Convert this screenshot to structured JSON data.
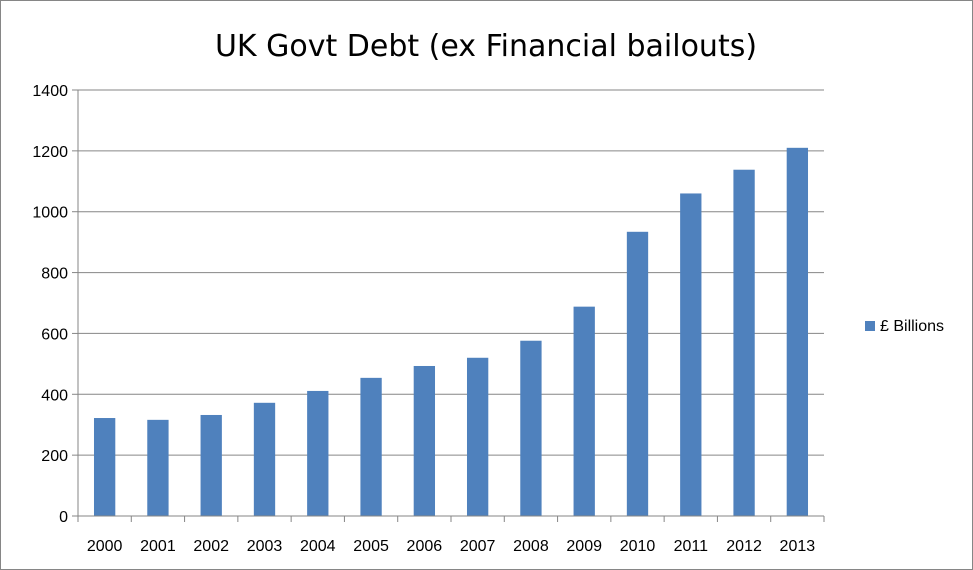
{
  "chart_data": {
    "type": "bar",
    "title": "UK Govt Debt (ex Financial bailouts)",
    "categories": [
      "2000",
      "2001",
      "2002",
      "2003",
      "2004",
      "2005",
      "2006",
      "2007",
      "2008",
      "2009",
      "2010",
      "2011",
      "2012",
      "2013"
    ],
    "series": [
      {
        "name": "£ Billions",
        "color": "#4f81bd",
        "values": [
          322,
          316,
          332,
          372,
          411,
          454,
          493,
          520,
          576,
          688,
          934,
          1060,
          1138,
          1210
        ]
      }
    ],
    "yticks": [
      "0",
      "200",
      "400",
      "600",
      "800",
      "1000",
      "1200",
      "1400"
    ],
    "ylim": [
      0,
      1400
    ],
    "grid": true,
    "legend_position": "right"
  }
}
